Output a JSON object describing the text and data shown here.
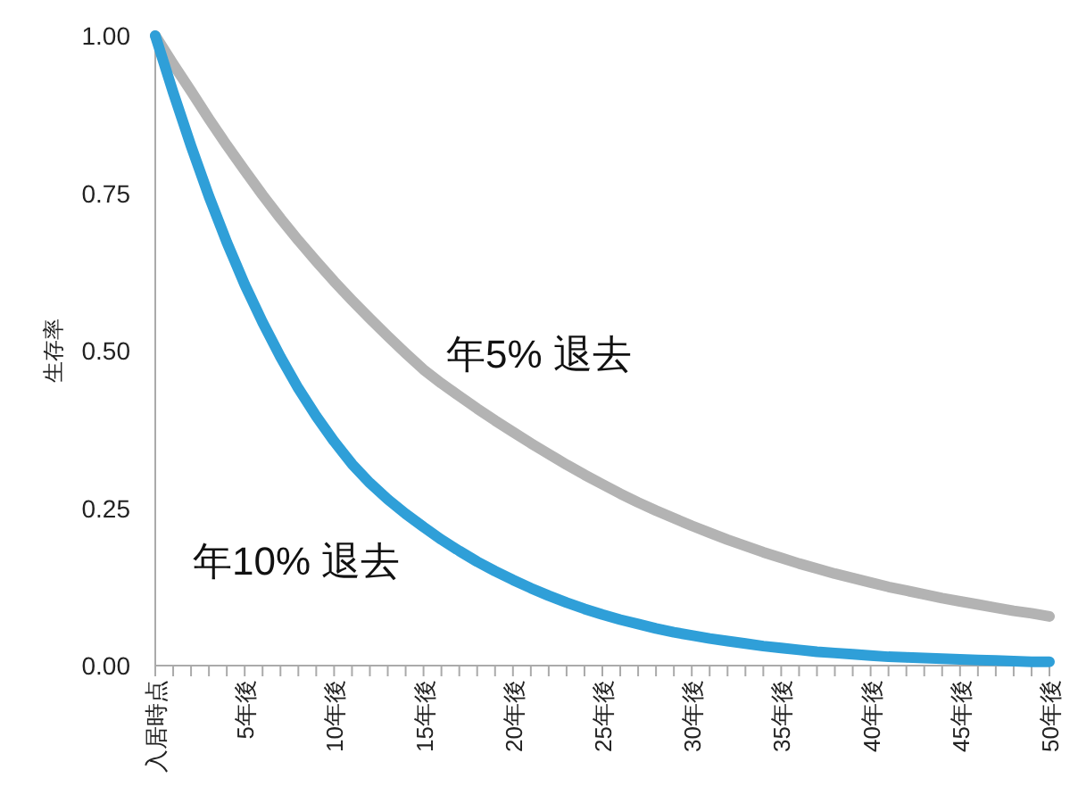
{
  "chart_data": {
    "type": "line",
    "ylabel": "生存率",
    "x": [
      0,
      1,
      2,
      3,
      4,
      5,
      6,
      7,
      8,
      9,
      10,
      11,
      12,
      13,
      14,
      15,
      16,
      17,
      18,
      19,
      20,
      21,
      22,
      23,
      24,
      25,
      26,
      27,
      28,
      29,
      30,
      31,
      32,
      33,
      34,
      35,
      36,
      37,
      38,
      39,
      40,
      41,
      42,
      43,
      44,
      45,
      46,
      47,
      48,
      49,
      50
    ],
    "series": [
      {
        "name": "年5% 退去",
        "color": "#b3b3b3",
        "values": [
          1,
          0.955,
          0.912,
          0.868,
          0.826,
          0.786,
          0.747,
          0.71,
          0.675,
          0.642,
          0.61,
          0.58,
          0.551,
          0.523,
          0.496,
          0.47,
          0.448,
          0.428,
          0.408,
          0.389,
          0.371,
          0.353,
          0.336,
          0.319,
          0.303,
          0.288,
          0.273,
          0.259,
          0.246,
          0.234,
          0.222,
          0.211,
          0.2,
          0.19,
          0.18,
          0.171,
          0.162,
          0.154,
          0.146,
          0.139,
          0.132,
          0.125,
          0.119,
          0.113,
          0.107,
          0.102,
          0.097,
          0.092,
          0.087,
          0.083,
          0.078
        ]
      },
      {
        "name": "年10% 退去",
        "color": "#2f9fd8",
        "values": [
          1,
          0.91,
          0.825,
          0.745,
          0.672,
          0.605,
          0.545,
          0.49,
          0.44,
          0.396,
          0.356,
          0.32,
          0.29,
          0.264,
          0.241,
          0.22,
          0.2,
          0.182,
          0.165,
          0.15,
          0.136,
          0.123,
          0.111,
          0.1,
          0.09,
          0.081,
          0.073,
          0.066,
          0.059,
          0.053,
          0.048,
          0.043,
          0.039,
          0.035,
          0.031,
          0.028,
          0.025,
          0.022,
          0.02,
          0.018,
          0.016,
          0.014,
          0.013,
          0.012,
          0.011,
          0.01,
          0.009,
          0.008,
          0.007,
          0.006,
          0.006
        ]
      }
    ],
    "xlim": [
      0,
      50
    ],
    "xticks": [
      {
        "value": 0,
        "label": "入居時点"
      },
      {
        "value": 1,
        "label": null
      },
      {
        "value": 2,
        "label": null
      },
      {
        "value": 3,
        "label": null
      },
      {
        "value": 4,
        "label": null
      },
      {
        "value": 5,
        "label": "5年後"
      },
      {
        "value": 6,
        "label": null
      },
      {
        "value": 7,
        "label": null
      },
      {
        "value": 8,
        "label": null
      },
      {
        "value": 9,
        "label": null
      },
      {
        "value": 10,
        "label": "10年後"
      },
      {
        "value": 11,
        "label": null
      },
      {
        "value": 12,
        "label": null
      },
      {
        "value": 13,
        "label": null
      },
      {
        "value": 14,
        "label": null
      },
      {
        "value": 15,
        "label": "15年後"
      },
      {
        "value": 16,
        "label": null
      },
      {
        "value": 17,
        "label": null
      },
      {
        "value": 18,
        "label": null
      },
      {
        "value": 19,
        "label": null
      },
      {
        "value": 20,
        "label": "20年後"
      },
      {
        "value": 21,
        "label": null
      },
      {
        "value": 22,
        "label": null
      },
      {
        "value": 23,
        "label": null
      },
      {
        "value": 24,
        "label": null
      },
      {
        "value": 25,
        "label": "25年後"
      },
      {
        "value": 26,
        "label": null
      },
      {
        "value": 27,
        "label": null
      },
      {
        "value": 28,
        "label": null
      },
      {
        "value": 29,
        "label": null
      },
      {
        "value": 30,
        "label": "30年後"
      },
      {
        "value": 31,
        "label": null
      },
      {
        "value": 32,
        "label": null
      },
      {
        "value": 33,
        "label": null
      },
      {
        "value": 34,
        "label": null
      },
      {
        "value": 35,
        "label": "35年後"
      },
      {
        "value": 36,
        "label": null
      },
      {
        "value": 37,
        "label": null
      },
      {
        "value": 38,
        "label": null
      },
      {
        "value": 39,
        "label": null
      },
      {
        "value": 40,
        "label": "40年後"
      },
      {
        "value": 41,
        "label": null
      },
      {
        "value": 42,
        "label": null
      },
      {
        "value": 43,
        "label": null
      },
      {
        "value": 44,
        "label": null
      },
      {
        "value": 45,
        "label": "45年後"
      },
      {
        "value": 46,
        "label": null
      },
      {
        "value": 47,
        "label": null
      },
      {
        "value": 48,
        "label": null
      },
      {
        "value": 49,
        "label": null
      },
      {
        "value": 50,
        "label": "50年後"
      }
    ],
    "ylim": [
      0,
      1
    ],
    "yticks": [
      {
        "value": 0,
        "label": "0.00"
      },
      {
        "value": 0.25,
        "label": "0.25"
      },
      {
        "value": 0.5,
        "label": "0.50"
      },
      {
        "value": 0.75,
        "label": "0.75"
      },
      {
        "value": 1,
        "label": "1.00"
      }
    ],
    "grid": false,
    "marker": "none",
    "line_style": "solid"
  }
}
